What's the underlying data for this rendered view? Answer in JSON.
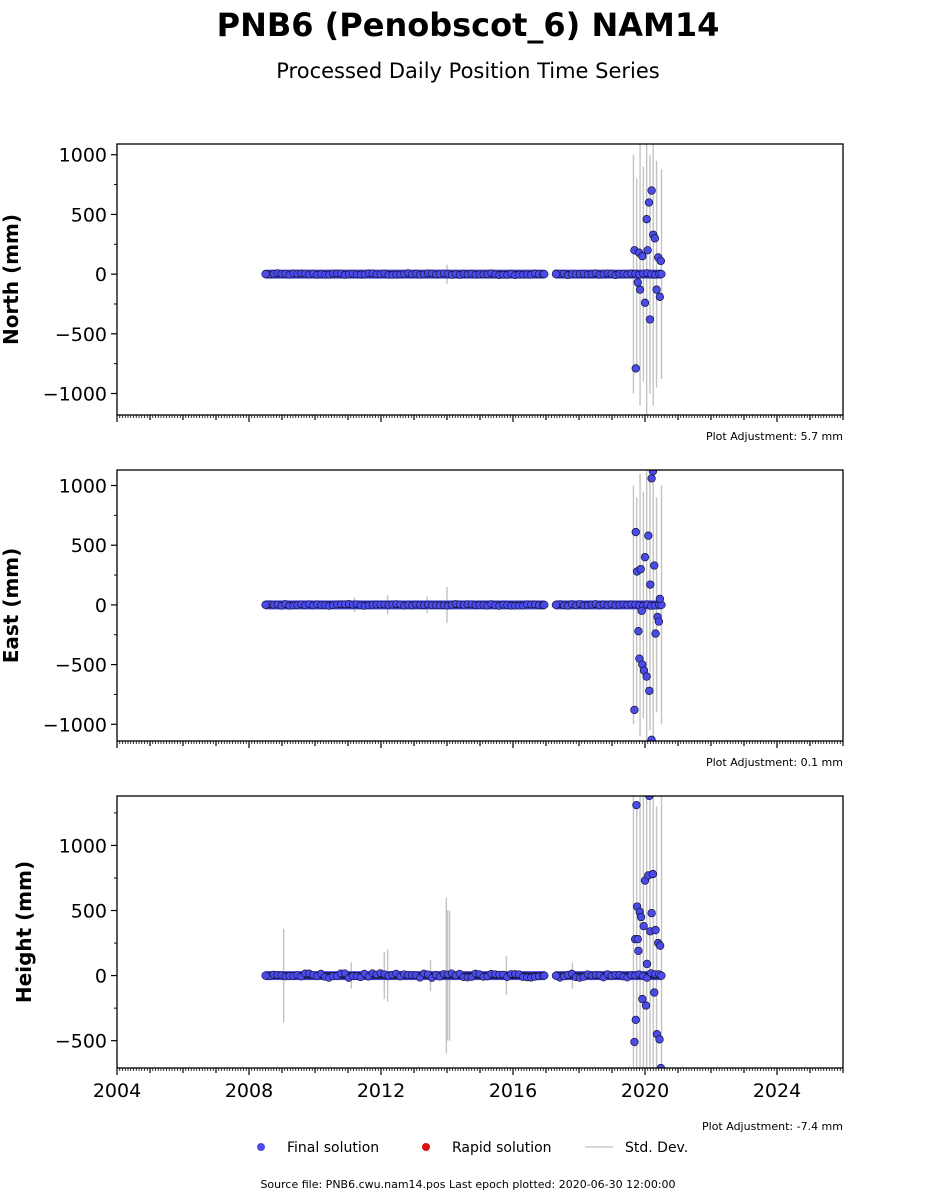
{
  "chart_data": {
    "type": "scatter",
    "title": "PNB6 (Penobscot_6) NAM14",
    "subtitle": "Processed Daily Position Time Series",
    "xlim": [
      2004,
      2026
    ],
    "xticks": [
      2004,
      2008,
      2012,
      2016,
      2020,
      2024
    ],
    "panels": [
      {
        "name": "north",
        "ylabel": "North (mm)",
        "ylim": [
          -1180,
          1090
        ],
        "yticks": [
          1000,
          500,
          0,
          -500,
          -1000
        ],
        "adjustment": "Plot Adjustment: 5.7 mm",
        "outliers": [
          {
            "x": 2019.68,
            "y": 200
          },
          {
            "x": 2019.72,
            "y": -790
          },
          {
            "x": 2019.78,
            "y": -70
          },
          {
            "x": 2019.82,
            "y": 180
          },
          {
            "x": 2019.85,
            "y": -130
          },
          {
            "x": 2019.92,
            "y": 150
          },
          {
            "x": 2020.0,
            "y": -240
          },
          {
            "x": 2020.05,
            "y": 460
          },
          {
            "x": 2020.08,
            "y": 200
          },
          {
            "x": 2020.12,
            "y": 600
          },
          {
            "x": 2020.15,
            "y": -380
          },
          {
            "x": 2020.2,
            "y": 700
          },
          {
            "x": 2020.25,
            "y": 330
          },
          {
            "x": 2020.3,
            "y": 300
          },
          {
            "x": 2020.35,
            "y": -130
          },
          {
            "x": 2020.4,
            "y": 140
          },
          {
            "x": 2020.45,
            "y": -190
          },
          {
            "x": 2020.48,
            "y": 110
          }
        ],
        "stddev_bars": [
          {
            "x": 2014.0,
            "half": 80
          },
          {
            "x": 2011.4,
            "half": 40
          },
          {
            "x": 2017.6,
            "half": 30
          },
          {
            "x": 2019.65,
            "half": 1000
          },
          {
            "x": 2019.75,
            "half": 800
          },
          {
            "x": 2019.85,
            "half": 1100
          },
          {
            "x": 2019.95,
            "half": 900
          },
          {
            "x": 2020.05,
            "half": 1200
          },
          {
            "x": 2020.15,
            "half": 1000
          },
          {
            "x": 2020.25,
            "half": 1100
          },
          {
            "x": 2020.35,
            "half": 950
          },
          {
            "x": 2020.5,
            "half": 880
          }
        ]
      },
      {
        "name": "east",
        "ylabel": "East (mm)",
        "ylim": [
          -1140,
          1130
        ],
        "yticks": [
          1000,
          500,
          0,
          -500,
          -1000
        ],
        "adjustment": "Plot Adjustment: 0.1 mm",
        "outliers": [
          {
            "x": 2019.68,
            "y": -880
          },
          {
            "x": 2019.72,
            "y": 610
          },
          {
            "x": 2019.76,
            "y": 280
          },
          {
            "x": 2019.8,
            "y": -220
          },
          {
            "x": 2019.83,
            "y": -450
          },
          {
            "x": 2019.87,
            "y": 300
          },
          {
            "x": 2019.92,
            "y": -500
          },
          {
            "x": 2019.97,
            "y": -550
          },
          {
            "x": 2020.0,
            "y": 400
          },
          {
            "x": 2020.05,
            "y": -600
          },
          {
            "x": 2020.1,
            "y": 580
          },
          {
            "x": 2020.13,
            "y": -720
          },
          {
            "x": 2020.16,
            "y": 170
          },
          {
            "x": 2020.2,
            "y": 1060
          },
          {
            "x": 2020.24,
            "y": 1120
          },
          {
            "x": 2020.28,
            "y": 330
          },
          {
            "x": 2020.32,
            "y": -240
          },
          {
            "x": 2020.38,
            "y": -100
          },
          {
            "x": 2020.42,
            "y": -140
          },
          {
            "x": 2020.45,
            "y": 50
          },
          {
            "x": 2020.2,
            "y": -1130
          },
          {
            "x": 2019.9,
            "y": -50
          }
        ],
        "stddev_bars": [
          {
            "x": 2014.0,
            "half": 150
          },
          {
            "x": 2012.2,
            "half": 80
          },
          {
            "x": 2011.2,
            "half": 60
          },
          {
            "x": 2013.4,
            "half": 70
          },
          {
            "x": 2019.65,
            "half": 1000
          },
          {
            "x": 2019.75,
            "half": 900
          },
          {
            "x": 2019.85,
            "half": 1100
          },
          {
            "x": 2019.95,
            "half": 950
          },
          {
            "x": 2020.05,
            "half": 1200
          },
          {
            "x": 2020.15,
            "half": 1050
          },
          {
            "x": 2020.25,
            "half": 1150
          },
          {
            "x": 2020.35,
            "half": 900
          },
          {
            "x": 2020.5,
            "half": 1000
          }
        ]
      },
      {
        "name": "height",
        "ylabel": "Height (mm)",
        "ylim": [
          -710,
          1380
        ],
        "yticks": [
          1000,
          500,
          0,
          -500
        ],
        "adjustment": "Plot Adjustment: -7.4 mm",
        "outliers": [
          {
            "x": 2019.68,
            "y": -510
          },
          {
            "x": 2019.7,
            "y": 280
          },
          {
            "x": 2019.72,
            "y": -340
          },
          {
            "x": 2019.74,
            "y": 1310
          },
          {
            "x": 2019.76,
            "y": 530
          },
          {
            "x": 2019.8,
            "y": 190
          },
          {
            "x": 2019.84,
            "y": 490
          },
          {
            "x": 2019.88,
            "y": 450
          },
          {
            "x": 2019.92,
            "y": -180
          },
          {
            "x": 2019.96,
            "y": 380
          },
          {
            "x": 2020.0,
            "y": 730
          },
          {
            "x": 2020.03,
            "y": -230
          },
          {
            "x": 2020.06,
            "y": 90
          },
          {
            "x": 2020.1,
            "y": 770
          },
          {
            "x": 2020.13,
            "y": 1380
          },
          {
            "x": 2020.16,
            "y": 340
          },
          {
            "x": 2020.2,
            "y": 480
          },
          {
            "x": 2020.24,
            "y": 780
          },
          {
            "x": 2020.28,
            "y": -130
          },
          {
            "x": 2020.32,
            "y": 350
          },
          {
            "x": 2020.36,
            "y": -450
          },
          {
            "x": 2020.4,
            "y": 250
          },
          {
            "x": 2020.44,
            "y": -490
          },
          {
            "x": 2020.46,
            "y": 230
          },
          {
            "x": 2020.48,
            "y": -710
          },
          {
            "x": 2019.78,
            "y": 280
          }
        ],
        "stddev_bars": [
          {
            "x": 2009.05,
            "half": 360
          },
          {
            "x": 2011.1,
            "half": 100
          },
          {
            "x": 2012.1,
            "half": 180
          },
          {
            "x": 2012.2,
            "half": 200
          },
          {
            "x": 2013.5,
            "half": 120
          },
          {
            "x": 2013.98,
            "half": 600
          },
          {
            "x": 2014.02,
            "half": 500
          },
          {
            "x": 2014.08,
            "half": 500
          },
          {
            "x": 2015.8,
            "half": 150
          },
          {
            "x": 2017.8,
            "half": 100
          },
          {
            "x": 2019.65,
            "half": 1400
          },
          {
            "x": 2019.75,
            "half": 1300
          },
          {
            "x": 2019.85,
            "half": 1500
          },
          {
            "x": 2019.95,
            "half": 1400
          },
          {
            "x": 2020.05,
            "half": 1500
          },
          {
            "x": 2020.15,
            "half": 1400
          },
          {
            "x": 2020.25,
            "half": 1500
          },
          {
            "x": 2020.35,
            "half": 1300
          },
          {
            "x": 2020.5,
            "half": 1400
          }
        ]
      }
    ],
    "legend": {
      "placement": "bottom-center",
      "entries": [
        {
          "label": "Final solution",
          "color": "#4b4be8"
        },
        {
          "label": "Rapid solution",
          "color": "#dd1111"
        },
        {
          "label": "Std. Dev.",
          "color": "#bbbbbb"
        }
      ]
    },
    "footer": "Source file: PNB6.cwu.nam14.pos  Last epoch plotted: 2020-06-30 12:00:00",
    "data_segments": [
      [
        2008.5,
        2016.95
      ],
      [
        2017.3,
        2020.5
      ]
    ]
  }
}
